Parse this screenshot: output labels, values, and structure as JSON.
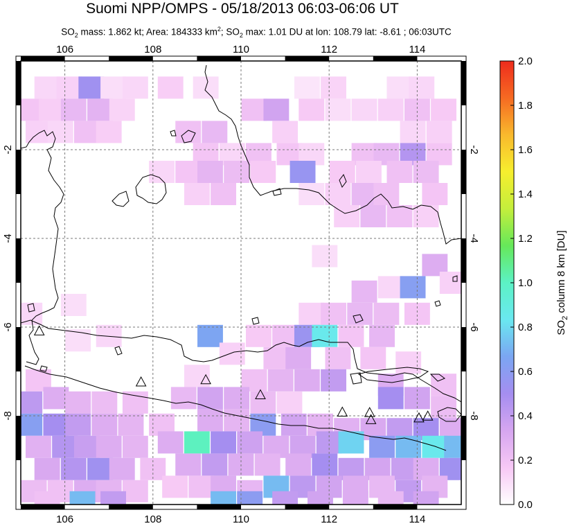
{
  "header": {
    "title": "Suomi NPP/OMPS - 05/18/2013 06:03-06:06 UT",
    "sub_part1": "SO",
    "sub_sub1": "2",
    "sub_part2": " mass: 1.862 kt; Area: 184333 km",
    "sub_sup": "2",
    "sub_part3": "; SO",
    "sub_sub2": "2",
    "sub_part4": " max: 1.01 DU at lon: 108.79 lat: -8.61 ; 06:03UTC"
  },
  "map": {
    "lon_range": [
      105,
      115
    ],
    "lat_range": [
      -10,
      0
    ],
    "lon_ticks": [
      "106",
      "108",
      "110",
      "112",
      "114"
    ],
    "lon_tick_values": [
      106,
      108,
      110,
      112,
      114
    ],
    "lat_ticks": [
      "-2",
      "-4",
      "-6",
      "-8"
    ],
    "lat_tick_values": [
      -2,
      -4,
      -6,
      -8
    ],
    "volcano_marker": "triangle-outline",
    "volcanoes": [
      {
        "lon": 105.42,
        "lat": -6.1
      },
      {
        "lon": 107.73,
        "lat": -7.25
      },
      {
        "lon": 109.2,
        "lat": -7.2
      },
      {
        "lon": 110.44,
        "lat": -7.54
      },
      {
        "lon": 112.3,
        "lat": -7.93
      },
      {
        "lon": 112.92,
        "lat": -7.94
      },
      {
        "lon": 112.95,
        "lat": -8.1
      },
      {
        "lon": 114.04,
        "lat": -8.06
      },
      {
        "lon": 114.24,
        "lat": -8.02
      }
    ]
  },
  "colorbar": {
    "label_main": "SO",
    "label_sub": "2",
    "label_rest": " column 8 km [DU]",
    "ticks": [
      "0.0",
      "0.2",
      "0.4",
      "0.6",
      "0.8",
      "1.0",
      "1.2",
      "1.4",
      "1.6",
      "1.8",
      "2.0"
    ],
    "tick_values": [
      0.0,
      0.2,
      0.4,
      0.6,
      0.8,
      1.0,
      1.2,
      1.4,
      1.6,
      1.8,
      2.0
    ],
    "range": [
      0,
      2.0
    ],
    "colors": [
      "#ffffff",
      "#f7c8f5",
      "#d6a6f0",
      "#a58ef0",
      "#7ba6f2",
      "#6ae8f0",
      "#5cf2c5",
      "#66e85a",
      "#c4ee3c",
      "#f6ee2e",
      "#f9b92d",
      "#f66a22",
      "#ee2c1d"
    ]
  },
  "chart_data": {
    "type": "heatmap",
    "title": "Suomi NPP/OMPS - 05/18/2013 06:03-06:06 UT",
    "xlabel": "",
    "ylabel": "",
    "colorbar_label": "SO2 column 8 km [DU]",
    "xlim": [
      105,
      115
    ],
    "ylim": [
      -10,
      0
    ],
    "clim": [
      0,
      2.0
    ],
    "cells": [
      [
        105.6,
        -0.6,
        0.12
      ],
      [
        106.1,
        -0.6,
        0.14
      ],
      [
        106.6,
        -0.6,
        0.52
      ],
      [
        107.1,
        -0.6,
        0.1
      ],
      [
        107.6,
        -0.6,
        0.12
      ],
      [
        108.4,
        -0.6,
        0.15
      ],
      [
        109.2,
        -0.6,
        0.1
      ],
      [
        111.5,
        -0.6,
        0.08
      ],
      [
        112.1,
        -0.6,
        0.13
      ],
      [
        113.6,
        -0.6,
        0.1
      ],
      [
        114.1,
        -0.6,
        0.12
      ],
      [
        105.2,
        -1.1,
        0.18
      ],
      [
        105.7,
        -1.1,
        0.15
      ],
      [
        106.2,
        -1.1,
        0.24
      ],
      [
        106.8,
        -1.1,
        0.27
      ],
      [
        107.3,
        -1.1,
        0.13
      ],
      [
        110.3,
        -1.1,
        0.2
      ],
      [
        110.8,
        -1.1,
        0.35
      ],
      [
        111.6,
        -1.1,
        0.16
      ],
      [
        112.2,
        -1.1,
        0.1
      ],
      [
        112.8,
        -1.1,
        0.12
      ],
      [
        113.4,
        -1.1,
        0.14
      ],
      [
        114.0,
        -1.1,
        0.2
      ],
      [
        114.6,
        -1.1,
        0.16
      ],
      [
        105.4,
        -1.6,
        0.14
      ],
      [
        105.9,
        -1.6,
        0.12
      ],
      [
        106.5,
        -1.6,
        0.2
      ],
      [
        107.0,
        -1.6,
        0.15
      ],
      [
        108.8,
        -1.6,
        0.2
      ],
      [
        109.4,
        -1.6,
        0.24
      ],
      [
        111.0,
        -1.6,
        0.14
      ],
      [
        113.9,
        -1.6,
        0.12
      ],
      [
        114.5,
        -1.6,
        0.14
      ],
      [
        109.2,
        -2.1,
        0.18
      ],
      [
        109.8,
        -2.1,
        0.12
      ],
      [
        110.4,
        -2.1,
        0.2
      ],
      [
        111.1,
        -2.1,
        0.18
      ],
      [
        111.6,
        -2.1,
        0.12
      ],
      [
        112.8,
        -2.1,
        0.2
      ],
      [
        113.3,
        -2.1,
        0.24
      ],
      [
        113.9,
        -2.1,
        0.45
      ],
      [
        114.5,
        -2.1,
        0.18
      ],
      [
        108.2,
        -2.5,
        0.12
      ],
      [
        108.8,
        -2.5,
        0.18
      ],
      [
        109.3,
        -2.5,
        0.26
      ],
      [
        109.9,
        -2.5,
        0.22
      ],
      [
        110.5,
        -2.5,
        0.16
      ],
      [
        111.4,
        -2.5,
        0.55
      ],
      [
        112.3,
        -2.5,
        0.16
      ],
      [
        112.9,
        -2.5,
        0.14
      ],
      [
        113.6,
        -2.5,
        0.2
      ],
      [
        114.2,
        -2.5,
        0.22
      ],
      [
        109.0,
        -3.0,
        0.14
      ],
      [
        109.6,
        -3.0,
        0.2
      ],
      [
        111.6,
        -3.0,
        0.1
      ],
      [
        112.2,
        -3.0,
        0.14
      ],
      [
        112.8,
        -3.0,
        0.24
      ],
      [
        113.3,
        -3.0,
        0.2
      ],
      [
        114.4,
        -3.0,
        0.18
      ],
      [
        112.4,
        -3.5,
        0.14
      ],
      [
        113.0,
        -3.5,
        0.24
      ],
      [
        113.6,
        -3.5,
        0.2
      ],
      [
        114.2,
        -3.5,
        0.14
      ],
      [
        111.9,
        -4.4,
        0.1
      ],
      [
        114.4,
        -4.6,
        0.3
      ],
      [
        113.4,
        -5.1,
        0.12
      ],
      [
        113.9,
        -5.1,
        0.62
      ],
      [
        112.8,
        -5.2,
        0.25
      ],
      [
        114.8,
        -5.0,
        0.14
      ],
      [
        105.2,
        -5.7,
        0.12
      ],
      [
        106.2,
        -5.5,
        0.1
      ],
      [
        111.6,
        -5.7,
        0.14
      ],
      [
        112.1,
        -5.7,
        0.2
      ],
      [
        112.7,
        -5.7,
        0.24
      ],
      [
        113.3,
        -5.7,
        0.22
      ],
      [
        114.0,
        -5.7,
        0.18
      ],
      [
        109.3,
        -6.2,
        0.66
      ],
      [
        110.4,
        -6.2,
        0.16
      ],
      [
        111.0,
        -6.2,
        0.2
      ],
      [
        111.5,
        -6.2,
        0.54
      ],
      [
        111.9,
        -6.2,
        0.85
      ],
      [
        112.5,
        -6.2,
        0.18
      ],
      [
        113.2,
        -6.2,
        0.25
      ],
      [
        106.3,
        -6.3,
        0.1
      ],
      [
        107.0,
        -6.2,
        0.12
      ],
      [
        109.8,
        -6.6,
        0.14
      ],
      [
        110.8,
        -6.7,
        0.2
      ],
      [
        111.3,
        -6.7,
        0.3
      ],
      [
        112.2,
        -6.7,
        0.2
      ],
      [
        113.0,
        -6.7,
        0.18
      ],
      [
        113.8,
        -6.8,
        0.14
      ],
      [
        105.4,
        -7.2,
        0.18
      ],
      [
        109.0,
        -7.1,
        0.12
      ],
      [
        110.3,
        -7.2,
        0.2
      ],
      [
        110.9,
        -7.2,
        0.26
      ],
      [
        111.5,
        -7.2,
        0.3
      ],
      [
        112.1,
        -7.2,
        0.4
      ],
      [
        113.4,
        -7.3,
        0.3
      ],
      [
        114.6,
        -7.3,
        0.2
      ],
      [
        105.2,
        -7.7,
        0.42
      ],
      [
        105.8,
        -7.6,
        0.3
      ],
      [
        106.3,
        -7.7,
        0.26
      ],
      [
        106.9,
        -7.7,
        0.22
      ],
      [
        107.6,
        -7.7,
        0.2
      ],
      [
        108.7,
        -7.6,
        0.24
      ],
      [
        109.3,
        -7.6,
        0.35
      ],
      [
        109.9,
        -7.6,
        0.3
      ],
      [
        110.5,
        -7.7,
        0.22
      ],
      [
        111.1,
        -7.7,
        0.14
      ],
      [
        113.4,
        -7.6,
        0.5
      ],
      [
        114.0,
        -7.6,
        0.35
      ],
      [
        114.6,
        -7.8,
        0.22
      ],
      [
        105.2,
        -8.2,
        0.62
      ],
      [
        105.8,
        -8.2,
        0.5
      ],
      [
        106.3,
        -8.2,
        0.4
      ],
      [
        106.9,
        -8.2,
        0.3
      ],
      [
        107.5,
        -8.2,
        0.26
      ],
      [
        108.2,
        -8.2,
        0.2
      ],
      [
        109.3,
        -8.1,
        0.3
      ],
      [
        109.9,
        -8.1,
        0.26
      ],
      [
        110.5,
        -8.2,
        0.6
      ],
      [
        111.2,
        -8.2,
        0.35
      ],
      [
        111.8,
        -8.2,
        0.26
      ],
      [
        112.4,
        -8.3,
        0.28
      ],
      [
        113.0,
        -8.3,
        0.32
      ],
      [
        113.6,
        -8.3,
        0.4
      ],
      [
        114.2,
        -8.3,
        0.5
      ],
      [
        114.8,
        -8.3,
        0.3
      ],
      [
        105.4,
        -8.7,
        0.28
      ],
      [
        106.0,
        -8.7,
        0.45
      ],
      [
        106.5,
        -8.7,
        0.38
      ],
      [
        107.0,
        -8.7,
        0.3
      ],
      [
        107.6,
        -8.7,
        0.26
      ],
      [
        108.4,
        -8.6,
        0.3
      ],
      [
        109.0,
        -8.6,
        1.01
      ],
      [
        109.6,
        -8.6,
        0.5
      ],
      [
        110.2,
        -8.6,
        0.36
      ],
      [
        110.8,
        -8.7,
        0.3
      ],
      [
        111.4,
        -8.7,
        0.35
      ],
      [
        112.0,
        -8.6,
        0.42
      ],
      [
        112.5,
        -8.6,
        0.78
      ],
      [
        113.2,
        -8.7,
        0.6
      ],
      [
        113.8,
        -8.7,
        0.72
      ],
      [
        114.4,
        -8.7,
        0.85
      ],
      [
        114.9,
        -8.7,
        0.72
      ],
      [
        105.6,
        -9.2,
        0.32
      ],
      [
        106.2,
        -9.2,
        0.45
      ],
      [
        106.8,
        -9.2,
        0.52
      ],
      [
        107.3,
        -9.2,
        0.3
      ],
      [
        108.0,
        -9.2,
        0.2
      ],
      [
        108.8,
        -9.1,
        0.3
      ],
      [
        109.4,
        -9.1,
        0.4
      ],
      [
        110.0,
        -9.1,
        0.3
      ],
      [
        110.6,
        -9.1,
        0.26
      ],
      [
        111.3,
        -9.1,
        0.3
      ],
      [
        111.9,
        -9.1,
        0.5
      ],
      [
        112.5,
        -9.2,
        0.4
      ],
      [
        113.1,
        -9.2,
        0.34
      ],
      [
        113.7,
        -9.2,
        0.38
      ],
      [
        114.2,
        -9.2,
        0.3
      ],
      [
        114.8,
        -9.2,
        0.52
      ],
      [
        105.3,
        -9.7,
        0.22
      ],
      [
        105.9,
        -9.7,
        0.2
      ],
      [
        106.5,
        -9.7,
        0.3
      ],
      [
        107.0,
        -9.7,
        0.26
      ],
      [
        107.6,
        -9.7,
        0.2
      ],
      [
        108.5,
        -9.6,
        0.16
      ],
      [
        109.1,
        -9.6,
        0.2
      ],
      [
        109.6,
        -9.6,
        0.3
      ],
      [
        110.2,
        -9.7,
        0.25
      ],
      [
        110.8,
        -9.6,
        0.72
      ],
      [
        111.4,
        -9.6,
        0.42
      ],
      [
        112.0,
        -9.6,
        0.35
      ],
      [
        112.6,
        -9.6,
        0.3
      ],
      [
        113.2,
        -9.6,
        0.24
      ],
      [
        113.8,
        -9.7,
        0.4
      ],
      [
        114.4,
        -9.6,
        0.26
      ],
      [
        105.6,
        -9.95,
        0.2
      ],
      [
        106.4,
        -9.95,
        0.72
      ],
      [
        107.1,
        -9.95,
        0.4
      ],
      [
        109.6,
        -9.95,
        0.72
      ],
      [
        110.2,
        -9.95,
        0.6
      ],
      [
        111.0,
        -9.95,
        0.4
      ],
      [
        111.8,
        -9.95,
        0.35
      ],
      [
        112.6,
        -9.95,
        0.3
      ],
      [
        113.4,
        -9.95,
        0.24
      ],
      [
        114.2,
        -9.95,
        0.35
      ]
    ]
  }
}
